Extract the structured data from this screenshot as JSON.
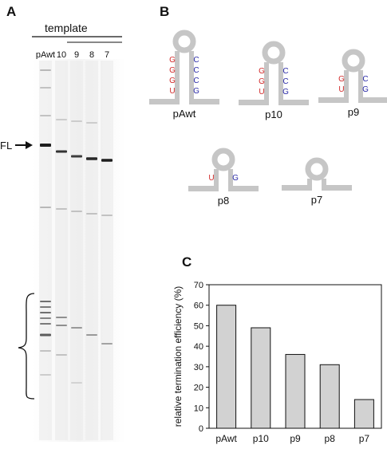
{
  "panels": {
    "a": {
      "label": "A"
    },
    "b": {
      "label": "B"
    },
    "c": {
      "label": "C"
    }
  },
  "gel": {
    "header": "template",
    "lanes": [
      "pAwt",
      "10",
      "9",
      "8",
      "7"
    ],
    "fl_label": "FL"
  },
  "hairpins": [
    {
      "name": "pAwt",
      "pairs": [
        [
          "G",
          "C"
        ],
        [
          "G",
          "C"
        ],
        [
          "G",
          "C"
        ],
        [
          "U",
          "G"
        ]
      ]
    },
    {
      "name": "p10",
      "pairs": [
        [
          "G",
          "C"
        ],
        [
          "G",
          "C"
        ],
        [
          "U",
          "G"
        ]
      ]
    },
    {
      "name": "p9",
      "pairs": [
        [
          "G",
          "C"
        ],
        [
          "U",
          "G"
        ]
      ]
    },
    {
      "name": "p8",
      "pairs": [
        [
          "U",
          "G"
        ]
      ]
    },
    {
      "name": "p7",
      "pairs": []
    }
  ],
  "colors": {
    "red_base": "#d22a2a",
    "blue_base": "#2a2aa8",
    "hairpin_gray": "#c6c6c6",
    "bar_fill": "#d2d2d2"
  },
  "chart_data": {
    "type": "bar",
    "categories": [
      "pAwt",
      "p10",
      "p9",
      "p8",
      "p7"
    ],
    "values": [
      60,
      49,
      36,
      31,
      14
    ],
    "ylabel": "relative termination efficiency (%)",
    "ylim": [
      0,
      70
    ],
    "yticks": [
      0,
      10,
      20,
      30,
      40,
      50,
      60,
      70
    ],
    "grid": false
  }
}
